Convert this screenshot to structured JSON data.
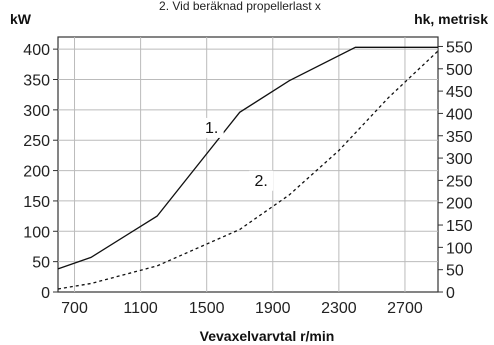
{
  "chart_data": {
    "type": "line",
    "caption": "2. Vid beräknad propellerlast x",
    "y_left_label": "kW",
    "y_right_label": "hk, metrisk",
    "xlabel": "Vevaxelvarvtal r/min",
    "xlim": [
      600,
      2900
    ],
    "ylim": [
      0,
      420
    ],
    "x_ticks": [
      700,
      1100,
      1500,
      1900,
      2300,
      2700
    ],
    "y_left_ticks": [
      0,
      50,
      100,
      150,
      200,
      250,
      300,
      350,
      400
    ],
    "y_right_ticks": [
      0,
      50,
      100,
      150,
      200,
      250,
      300,
      350,
      400,
      450,
      500,
      550
    ],
    "y_right_factor": 1.36,
    "grid": true,
    "series": [
      {
        "name": "1.",
        "style": "solid",
        "x": [
          600,
          800,
          1200,
          1700,
          2000,
          2400,
          2900
        ],
        "y": [
          38,
          57,
          125,
          296,
          348,
          403,
          403
        ]
      },
      {
        "name": "2.",
        "style": "dashed",
        "x": [
          600,
          800,
          1200,
          1700,
          2000,
          2300,
          2600,
          2900
        ],
        "y": [
          5,
          14,
          43,
          103,
          160,
          233,
          320,
          397
        ]
      }
    ]
  }
}
